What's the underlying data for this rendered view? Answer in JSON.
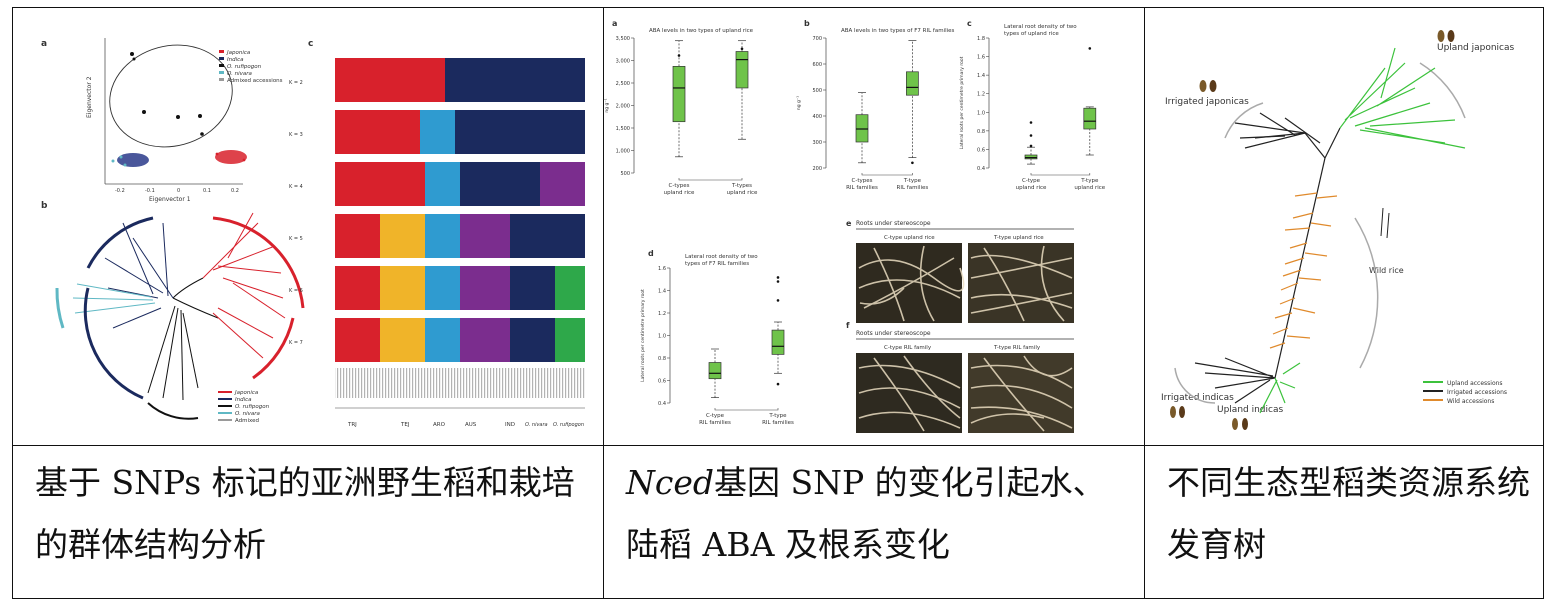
{
  "cells": [
    {
      "caption": "基于 SNPs 标记的亚洲野生稻和栽培的群体结构分析",
      "panels": {
        "a": "a",
        "b": "b",
        "c": "c"
      },
      "pca": {
        "xlabel": "Eigenvector 1",
        "ylabel": "Eigenvector 2",
        "xticks": [
          "-0.2",
          "-0.1",
          "0",
          "0.1",
          "0.2"
        ]
      },
      "legend_a": [
        "Japonica",
        "Indica",
        "O. rufipogon",
        "O. nivara",
        "Admixed accessions"
      ],
      "legend_b": [
        "Japonica",
        "Indica",
        "O. rufipogon",
        "O. nivara",
        "Admixed"
      ],
      "k_labels": [
        "K = 2",
        "K = 3",
        "K = 4",
        "K = 5",
        "K = 6",
        "K = 7"
      ],
      "groups": [
        "TRJ",
        "TEJ",
        "ARO",
        "AUS",
        "IND",
        "O. rufipogon / O. nivara"
      ],
      "group_short": [
        "TRJ",
        "TEJ",
        "ARO",
        "AUS",
        "IND",
        "O. nivara",
        "O. rufipogon"
      ],
      "colors": {
        "japonica": "#d8212c",
        "indica": "#1b2a5e",
        "rufipogon": "#111111",
        "nivara": "#5fb8c4",
        "admixed": "#9a9a9a"
      }
    },
    {
      "caption_italic": "Nced",
      "caption_rest": "基因 SNP 的变化引起水、陆稻 ABA 及根系变化",
      "panels": {
        "a": "a",
        "b": "b",
        "c": "c",
        "d": "d",
        "e": "e",
        "f": "f"
      },
      "a": {
        "title": "ABA levels in two types of upland rice",
        "ylabel": "ng g⁻¹",
        "yticks": [
          "3,500",
          "3,000",
          "2,500",
          "2,000",
          "1,500",
          "1,000",
          "500"
        ],
        "cats": [
          "C-types upland rice",
          "T-types upland rice"
        ]
      },
      "b": {
        "title": "ABA levels in two types of F7 RIL families",
        "ylabel": "ng g⁻¹",
        "yticks": [
          "700",
          "600",
          "500",
          "400",
          "300",
          "200"
        ],
        "cats": [
          "C-types RIL families",
          "T-type RIL families"
        ]
      },
      "c": {
        "title": "Lateral root density of two types of upland rice",
        "ylabel": "Lateral roots per centimetre primary root",
        "yticks": [
          "1.8",
          "1.6",
          "1.4",
          "1.2",
          "1.0",
          "0.8",
          "0.6",
          "0.4"
        ],
        "cats": [
          "C-type upland rice",
          "T-type upland rice"
        ]
      },
      "d": {
        "title": "Lateral root density of two types of F7 RIL families",
        "ylabel": "Lateral roots per centimetre primary root",
        "yticks": [
          "1.6",
          "1.4",
          "1.2",
          "1.0",
          "0.8",
          "0.6",
          "0.4"
        ],
        "cats": [
          "C-type RIL families",
          "T-type RIL families"
        ]
      },
      "e": {
        "title": "Roots under stereoscope",
        "left": "C-type upland rice",
        "right": "T-type upland rice"
      },
      "f": {
        "title": "Roots under stereoscope",
        "left": "C-type RIL family",
        "right": "T-type RIL family"
      }
    },
    {
      "caption": "不同生态型稻类资源系统发育树",
      "labels": {
        "upland_japonicas": "Upland japonicas",
        "irrigated_japonicas": "Irrigated japonicas",
        "wild_rice": "Wild rice",
        "irrigated_indicas": "Irrigated indicas",
        "upland_indicas": "Upland indicas"
      },
      "legend": [
        "Upland accessions",
        "Irrigated accessions",
        "Wild accessions"
      ],
      "colors": {
        "upland": "#3cc23c",
        "irrigated": "#222222",
        "wild": "#e08a2c"
      }
    }
  ]
}
